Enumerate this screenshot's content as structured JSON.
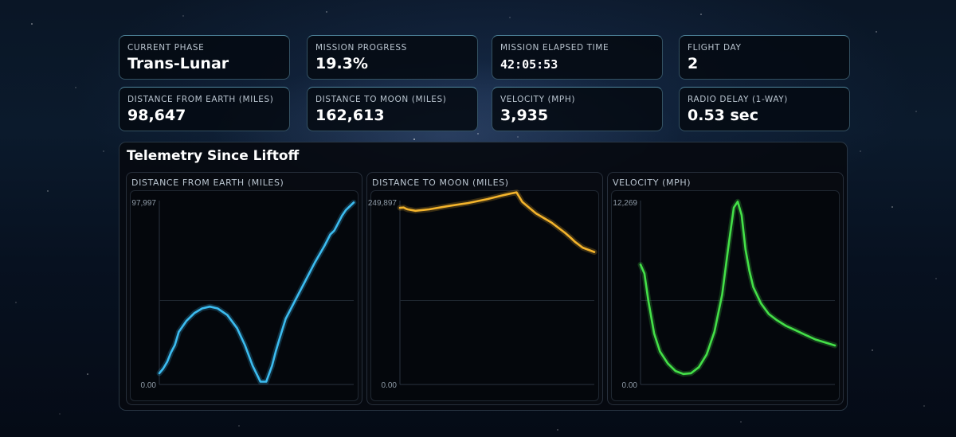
{
  "stats": [
    {
      "id": "current-phase",
      "label": "CURRENT PHASE",
      "value": "Trans-Lunar"
    },
    {
      "id": "mission-progress",
      "label": "MISSION PROGRESS",
      "value": "19.3%"
    },
    {
      "id": "mission-elapsed-time",
      "label": "MISSION ELAPSED TIME",
      "value": "42:05:53"
    },
    {
      "id": "flight-day",
      "label": "FLIGHT DAY",
      "value": "2"
    },
    {
      "id": "distance-from-earth",
      "label": "DISTANCE FROM EARTH (MILES)",
      "value": "98,647"
    },
    {
      "id": "distance-to-moon",
      "label": "DISTANCE TO MOON (MILES)",
      "value": "162,613"
    },
    {
      "id": "velocity",
      "label": "VELOCITY (MPH)",
      "value": "3,935"
    },
    {
      "id": "radio-delay",
      "label": "RADIO DELAY (1-WAY)",
      "value": "0.53 sec"
    }
  ],
  "telemetry": {
    "title": "Telemetry Since Liftoff"
  },
  "chart_data": [
    {
      "type": "line",
      "title": "DISTANCE FROM EARTH (MILES)",
      "color": "#3cbcf0",
      "ylim": [
        0,
        97997
      ],
      "ytick_labels": [
        "97,997",
        "0.00"
      ],
      "x": [
        0,
        2,
        4,
        6,
        8,
        10,
        14,
        18,
        22,
        26,
        30,
        35,
        40,
        44,
        48,
        52,
        55,
        58,
        60,
        62,
        65,
        70,
        75,
        80,
        85,
        88,
        90,
        92,
        94,
        96,
        100
      ],
      "y": [
        6000,
        8500,
        12000,
        17000,
        21000,
        28000,
        34000,
        38000,
        40500,
        41500,
        40500,
        37000,
        30000,
        21000,
        10000,
        1500,
        1500,
        10000,
        18000,
        25000,
        35000,
        45000,
        55000,
        65000,
        74000,
        80000,
        82000,
        86000,
        90000,
        93000,
        97000
      ]
    },
    {
      "type": "line",
      "title": "DISTANCE TO MOON (MILES)",
      "color": "#f4b42c",
      "ylim": [
        0,
        249897
      ],
      "ytick_labels": [
        "249,897",
        "0.00"
      ],
      "x": [
        0,
        2,
        3,
        4,
        8,
        15,
        25,
        35,
        45,
        52,
        57,
        60,
        63,
        70,
        78,
        85,
        88,
        90,
        94,
        100
      ],
      "y": [
        240000,
        240500,
        239000,
        238000,
        236000,
        238000,
        242500,
        246500,
        252000,
        256500,
        259500,
        261000,
        248000,
        232500,
        220000,
        206000,
        199000,
        194000,
        186000,
        180000
      ]
    },
    {
      "type": "line",
      "title": "VELOCITY (MPH)",
      "color": "#44e048",
      "ylim": [
        0,
        12269
      ],
      "ytick_labels": [
        "12,269",
        "0.00"
      ],
      "x": [
        0,
        2,
        4,
        7,
        10,
        14,
        18,
        22,
        26,
        30,
        34,
        38,
        42,
        45,
        48,
        50,
        52,
        54,
        56,
        58,
        62,
        66,
        70,
        75,
        80,
        85,
        90,
        95,
        100
      ],
      "y": [
        8000,
        7400,
        5600,
        3400,
        2200,
        1400,
        900,
        700,
        750,
        1150,
        2000,
        3500,
        6000,
        9000,
        11800,
        12200,
        11300,
        9000,
        7600,
        6500,
        5400,
        4700,
        4300,
        3900,
        3600,
        3300,
        3000,
        2800,
        2600
      ]
    }
  ]
}
